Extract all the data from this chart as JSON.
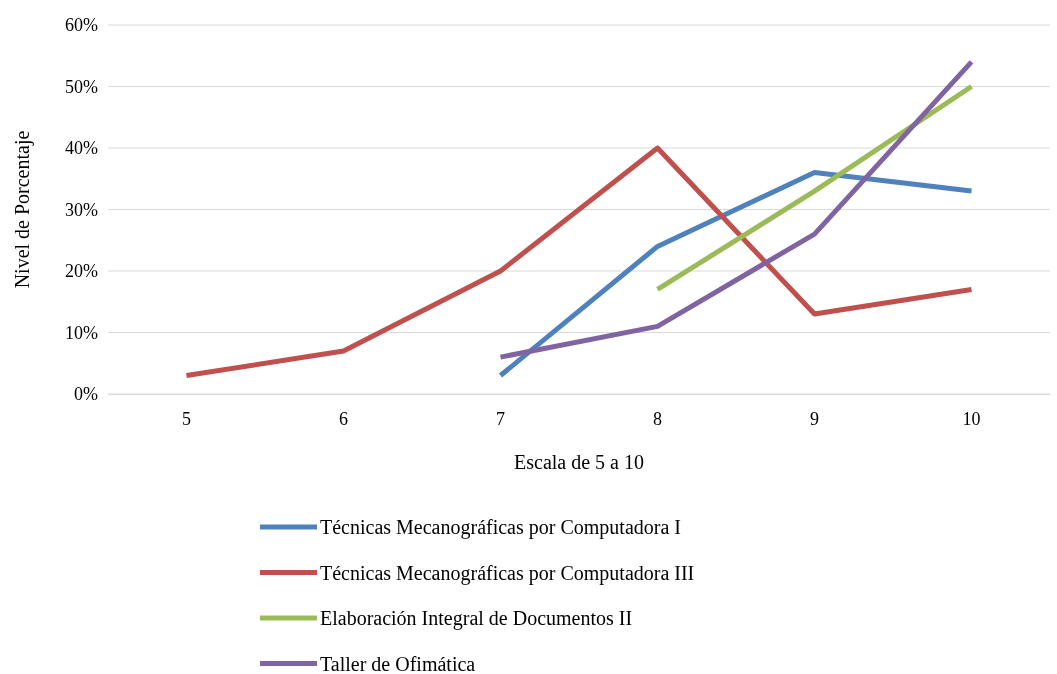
{
  "chart_data": {
    "type": "line",
    "xlabel": "Escala de 5 a 10",
    "ylabel": "Nivel de Porcentaje",
    "categories": [
      "5",
      "6",
      "7",
      "8",
      "9",
      "10"
    ],
    "ylim": [
      0,
      60
    ],
    "yticks": [
      {
        "value": 0,
        "label": "0%"
      },
      {
        "value": 10,
        "label": "10%"
      },
      {
        "value": 20,
        "label": "20%"
      },
      {
        "value": 30,
        "label": "30%"
      },
      {
        "value": 40,
        "label": "40%"
      },
      {
        "value": 50,
        "label": "50%"
      },
      {
        "value": 60,
        "label": "60%"
      }
    ],
    "grid": "y",
    "legend": "bottom",
    "marker": "none",
    "line_style": "solid",
    "series": [
      {
        "name": "Técnicas Mecanográficas por Computadora I",
        "color": "#4f81bd",
        "values": [
          null,
          null,
          3,
          24,
          36,
          33
        ]
      },
      {
        "name": "Técnicas Mecanográficas por Computadora III",
        "color": "#c0504d",
        "values": [
          3,
          7,
          20,
          40,
          13,
          17
        ]
      },
      {
        "name": "Elaboración Integral de Documentos II",
        "color": "#9bbb59",
        "values": [
          null,
          null,
          null,
          17,
          33,
          50
        ]
      },
      {
        "name": "Taller de Ofimática",
        "color": "#8064a2",
        "values": [
          null,
          null,
          6,
          11,
          26,
          54
        ]
      }
    ]
  }
}
